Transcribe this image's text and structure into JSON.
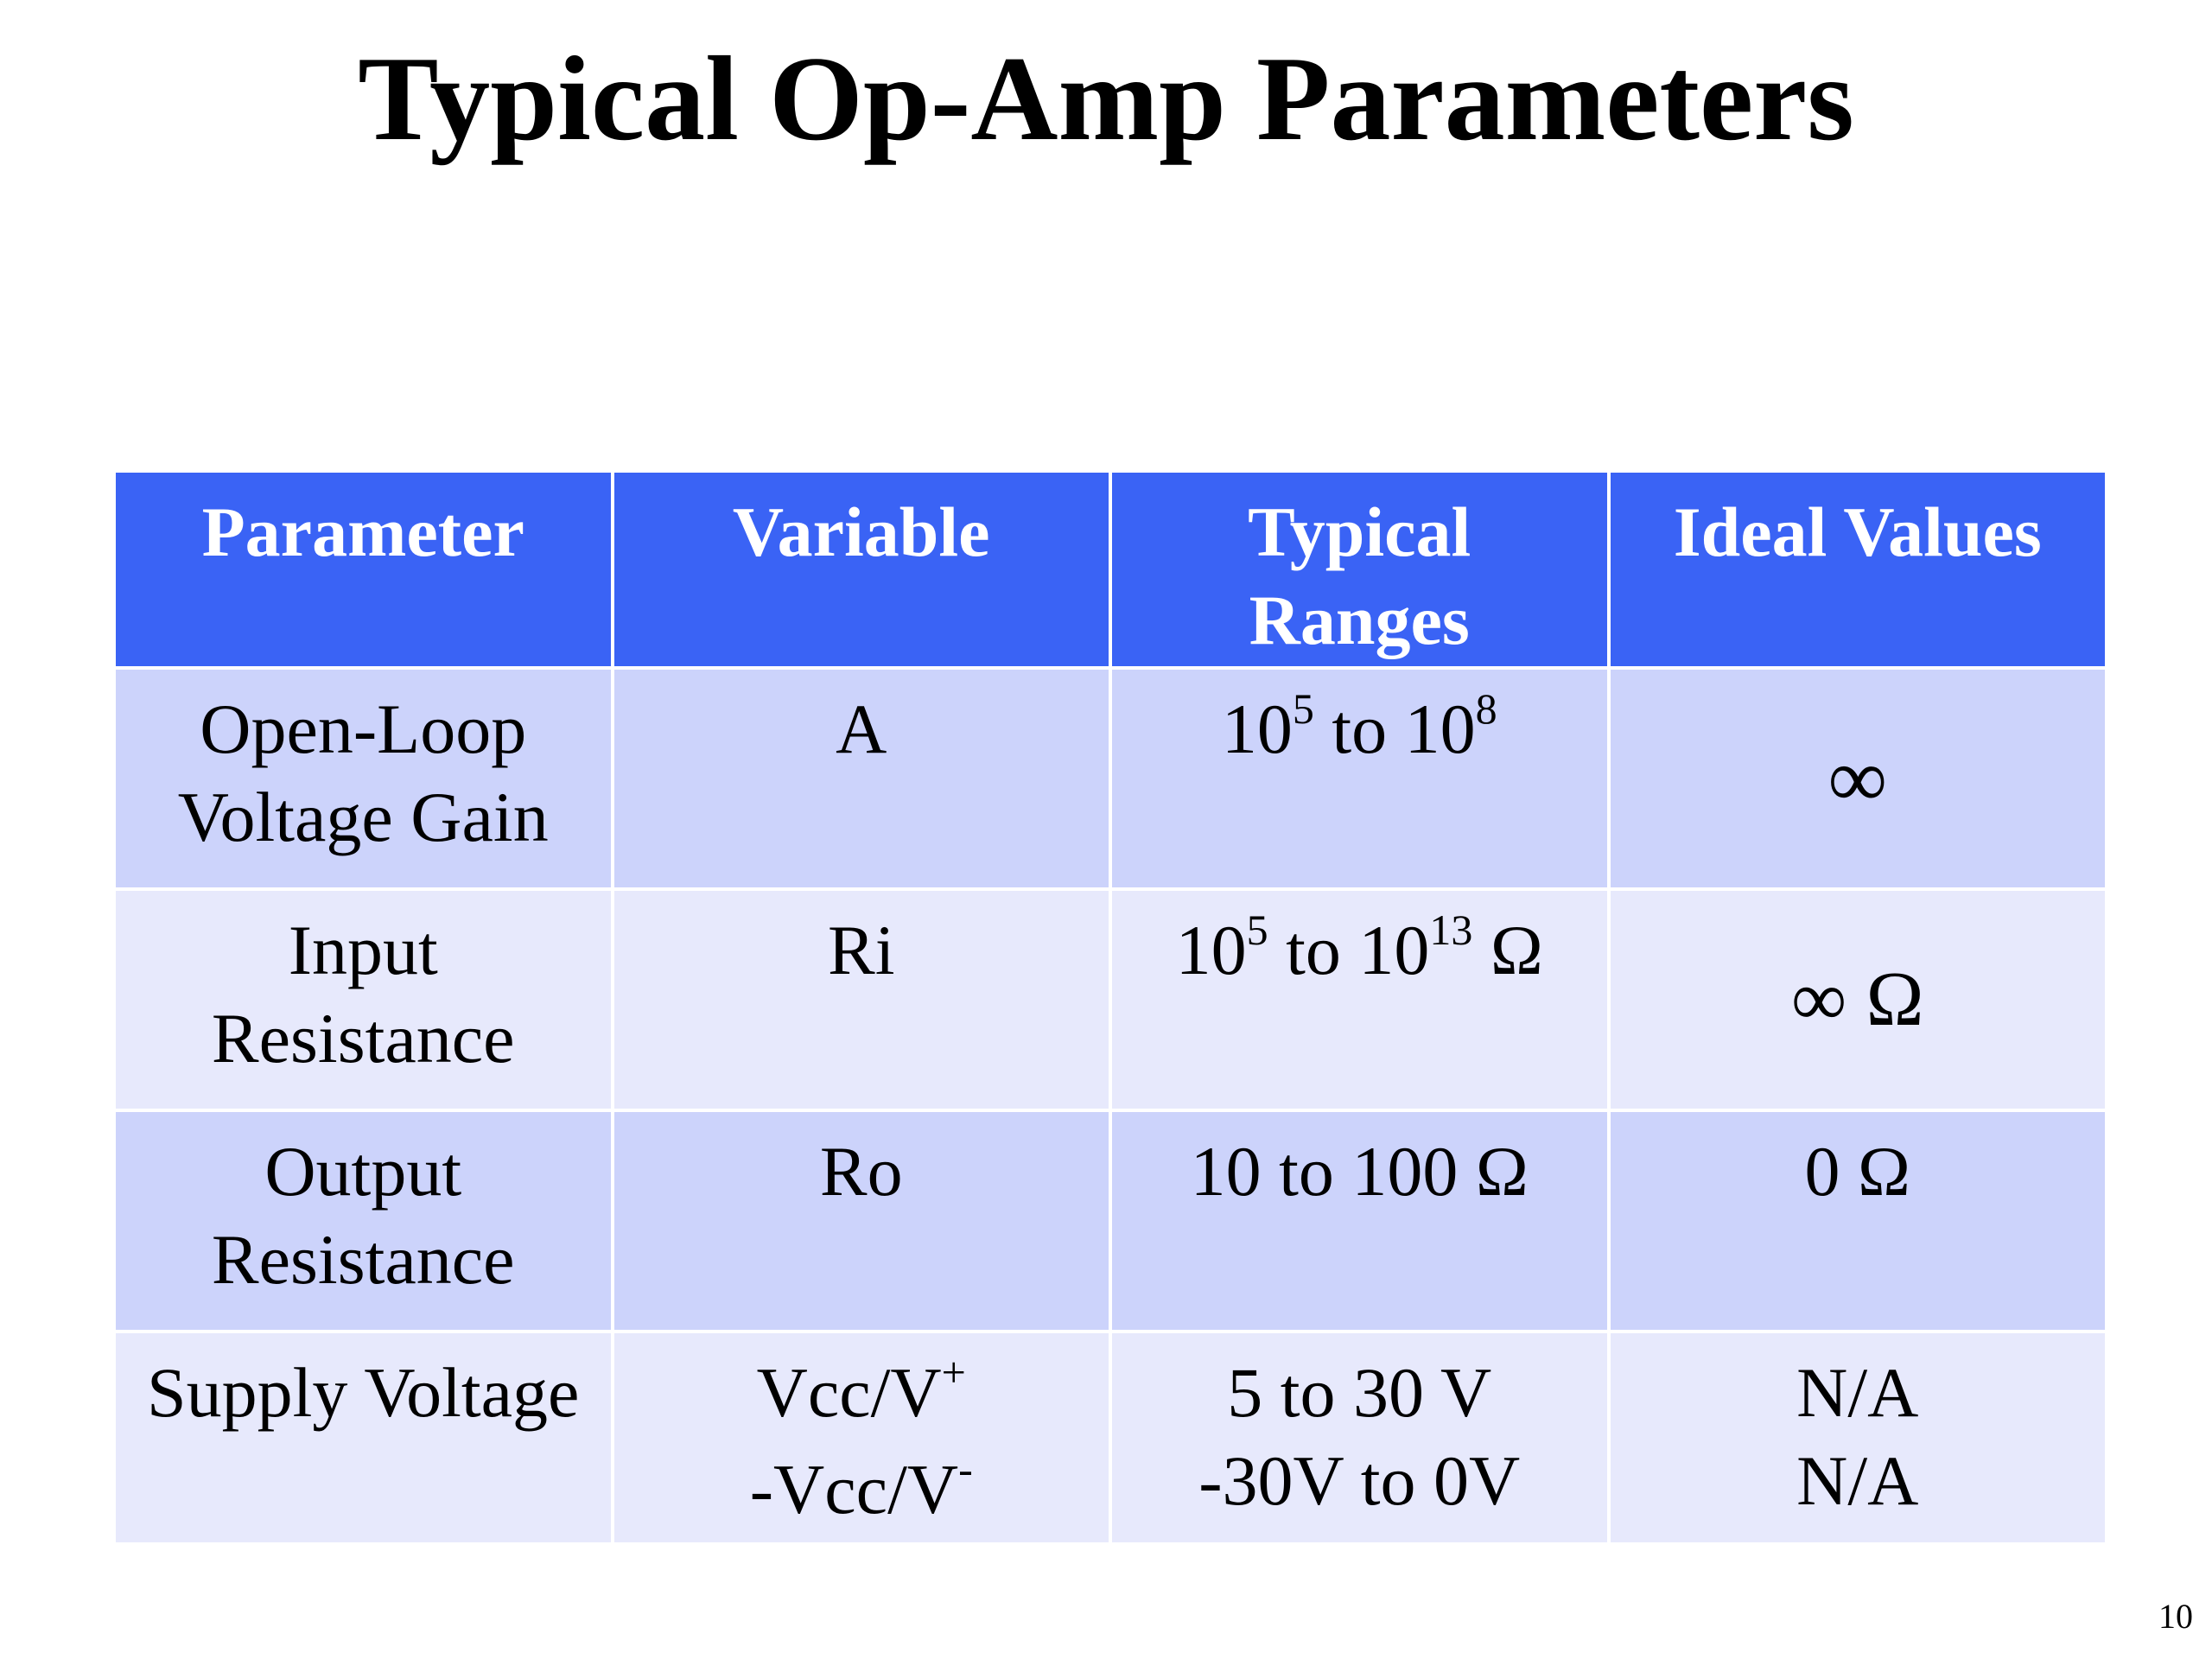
{
  "title": "Typical Op-Amp Parameters",
  "table": {
    "headers": [
      "Parameter",
      "Variable",
      "Typical Ranges",
      "Ideal Values"
    ],
    "rows": [
      {
        "parameter": [
          "Open-Loop",
          "Voltage Gain"
        ],
        "variable": [
          "A"
        ],
        "typical": {
          "base1": "10",
          "exp1": "5",
          "middle": " to ",
          "base2": "10",
          "exp2": "8",
          "unit": ""
        },
        "ideal": [
          "∞"
        ]
      },
      {
        "parameter": [
          "Input",
          "Resistance"
        ],
        "variable": [
          "Ri"
        ],
        "typical": {
          "base1": "10",
          "exp1": "5",
          "middle": " to ",
          "base2": "10",
          "exp2": "13",
          "unit": " Ω"
        },
        "ideal": [
          "∞ Ω"
        ]
      },
      {
        "parameter": [
          "Output",
          "Resistance"
        ],
        "variable": [
          "Ro"
        ],
        "typical": [
          "10 to 100 Ω"
        ],
        "ideal": [
          "0 Ω"
        ]
      },
      {
        "parameter": [
          "Supply Voltage"
        ],
        "variable": [
          {
            "base": "Vcc/V",
            "sup": "+"
          },
          {
            "base": "-Vcc/V",
            "sup": "-"
          }
        ],
        "typical": [
          "5 to 30 V",
          "-30V to 0V"
        ],
        "ideal": [
          "N/A",
          "N/A"
        ]
      }
    ]
  },
  "page_number": "10",
  "colors": {
    "header_bg": "#3a63f5",
    "row_dark": "#ccd3fb",
    "row_light": "#e7e9fc"
  }
}
